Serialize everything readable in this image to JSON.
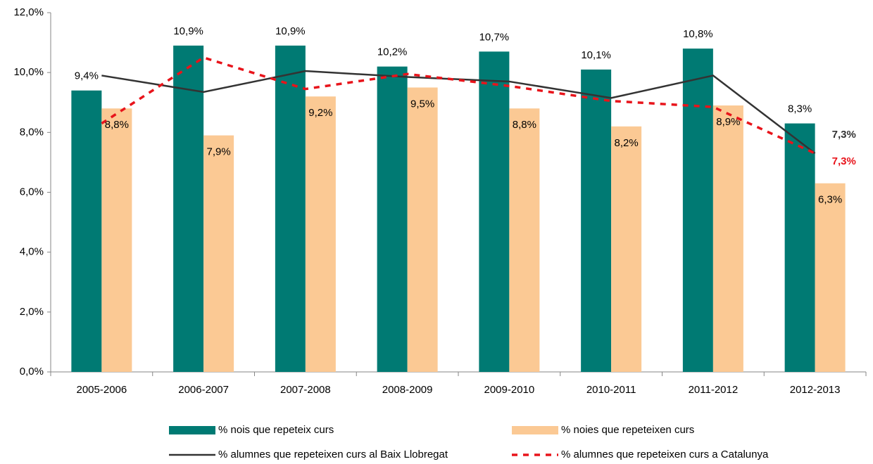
{
  "chart_data": {
    "type": "bar",
    "categories": [
      "2005-2006",
      "2006-2007",
      "2007-2008",
      "2008-2009",
      "2009-2010",
      "2010-2011",
      "2011-2012",
      "2012-2013"
    ],
    "series": [
      {
        "name": "% nois que repeteix curs",
        "type": "bar",
        "color": "#007a73",
        "values": [
          9.4,
          10.9,
          10.9,
          10.2,
          10.7,
          10.1,
          10.8,
          8.3
        ],
        "value_labels": [
          "9,4%",
          "10,9%",
          "10,9%",
          "10,2%",
          "10,7%",
          "10,1%",
          "10,8%",
          "8,3%"
        ]
      },
      {
        "name": "% noies que repeteixen curs",
        "type": "bar",
        "color": "#fbc994",
        "values": [
          8.8,
          7.9,
          9.2,
          9.5,
          8.8,
          8.2,
          8.9,
          6.3
        ],
        "value_labels": [
          "8,8%",
          "7,9%",
          "9,2%",
          "9,5%",
          "8,8%",
          "8,2%",
          "8,9%",
          "6,3%"
        ]
      },
      {
        "name": "% alumnes que repeteixen curs al Baix Llobregat",
        "type": "line",
        "color": "#333333",
        "dashed": false,
        "values": [
          9.9,
          9.35,
          10.05,
          9.85,
          9.7,
          9.15,
          9.9,
          7.3
        ],
        "value_labels": [
          null,
          null,
          null,
          null,
          null,
          null,
          null,
          "7,3%"
        ]
      },
      {
        "name": "% alumnes que repeteixen curs a Catalunya",
        "type": "line",
        "color": "#e8141b",
        "dashed": true,
        "values": [
          8.3,
          10.5,
          9.45,
          9.95,
          9.55,
          9.05,
          8.85,
          7.3
        ],
        "value_labels": [
          null,
          null,
          null,
          null,
          null,
          null,
          null,
          "7,3%"
        ]
      }
    ],
    "ylim": [
      0,
      12
    ],
    "yticks": [
      {
        "value": 0,
        "label": "0,0%"
      },
      {
        "value": 2,
        "label": "2,0%"
      },
      {
        "value": 4,
        "label": "4,0%"
      },
      {
        "value": 6,
        "label": "6,0%"
      },
      {
        "value": 8,
        "label": "8,0%"
      },
      {
        "value": 10,
        "label": "10,0%"
      },
      {
        "value": 12,
        "label": "12,0%"
      }
    ],
    "grid": false,
    "legend": "bottom"
  }
}
